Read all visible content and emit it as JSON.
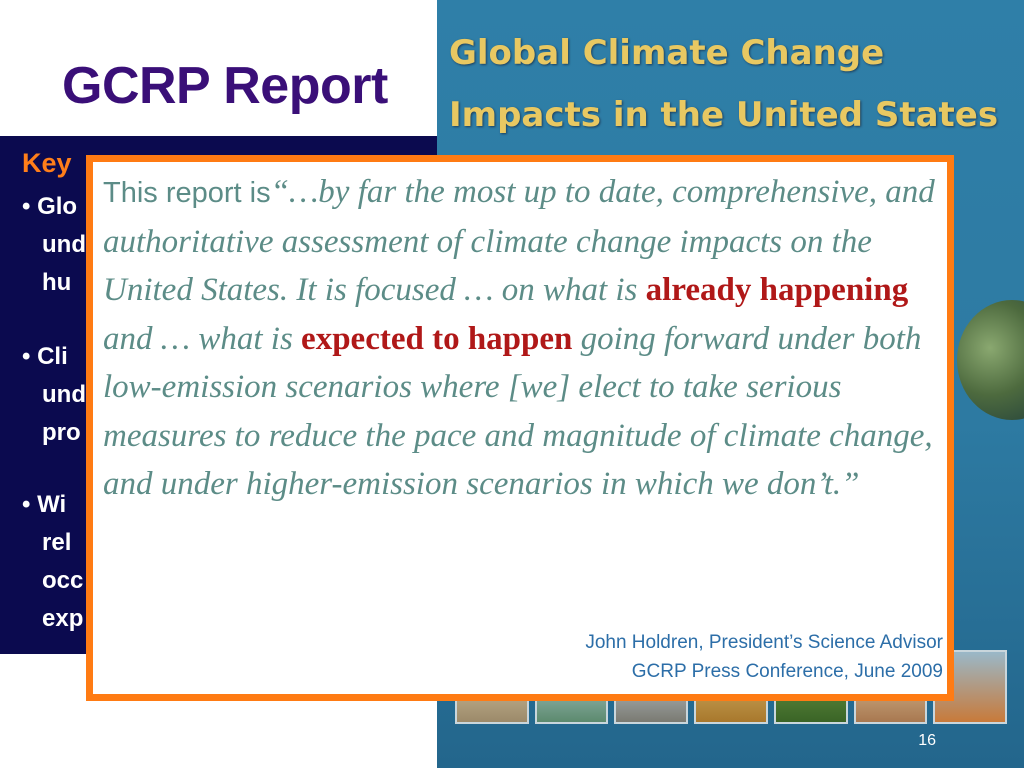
{
  "slide": {
    "title": "GCRP Report",
    "page_number": "16"
  },
  "left_panel": {
    "heading": "Key",
    "bullets": [
      "• Glo\n   und\n   hu",
      "• Cli\n   und\n   pro",
      "• Wi\n   rel\n   occ\n   exp"
    ]
  },
  "cover": {
    "title": "Global Climate Change\nImpacts in the United States"
  },
  "quote": {
    "lead": "This report is",
    "part1": "“…by far the most up to date, comprehensive, and authoritative assessment of climate change impacts on the United States. It is focused … on what is ",
    "highlight1": "already happening",
    "part2": " and … what is ",
    "highlight2": "expected to happen",
    "part3": " going forward under both low-emission scenarios where [we] elect to take serious measures to reduce the pace and magnitude of climate change, and under higher-emission scenarios in which we don’t.”",
    "attribution_line1": "John Holdren, President’s Science Advisor",
    "attribution_line2": "GCRP Press Conference, June 2009"
  },
  "colors": {
    "title": "#3a0f78",
    "navy_panel": "#0b0a4f",
    "accent_orange": "#ff7b13",
    "quote_text": "#5c8c87",
    "highlight_red": "#b01818",
    "attribution_blue": "#2c6ea8",
    "cover_blue": "#2f7fa8",
    "cover_title_gold": "#e8c862"
  }
}
